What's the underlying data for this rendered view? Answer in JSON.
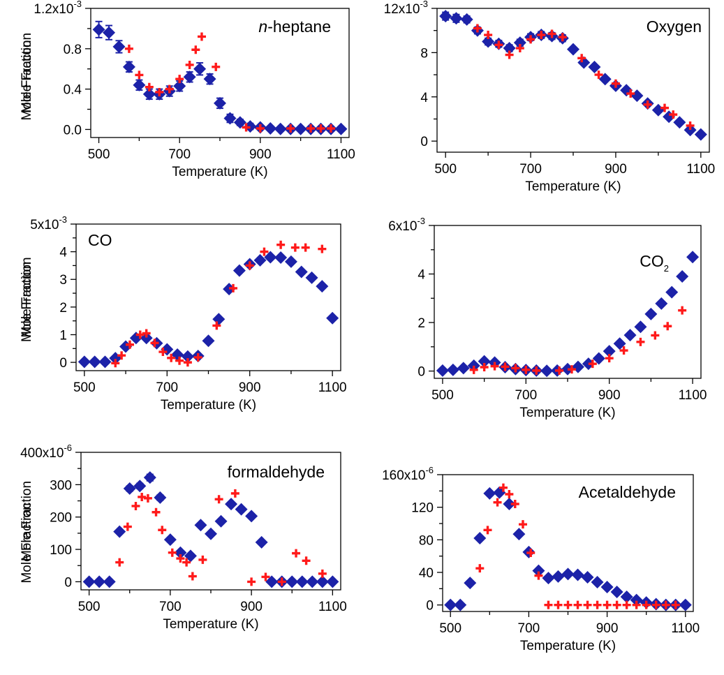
{
  "colors": {
    "model": "#1c22a8",
    "experiment": "#ff1a1a"
  },
  "chart_data": [
    {
      "type": "scatter",
      "label_main": "n",
      "label_rest": "-heptane",
      "label_sub": "",
      "xlabel": "Temperature (K)",
      "ylabel": "Mole Fraction",
      "xlim": [
        480,
        1120
      ],
      "ylim": [
        -0.08,
        1.2
      ],
      "y_exponent": "-3",
      "x_ticks": [
        500,
        700,
        900,
        1100
      ],
      "y_ticks": [
        0.0,
        0.4,
        0.8,
        1.2
      ],
      "y_tick_labels": [
        "0.0",
        "0.4",
        "0.8",
        "1.2x10"
      ],
      "series": [
        {
          "x": [
            500,
            525,
            550,
            575,
            600,
            625,
            650,
            675,
            700,
            725,
            750,
            775,
            800,
            825,
            850,
            875,
            900,
            925,
            950,
            975,
            1000,
            1025,
            1050,
            1075,
            1100
          ],
          "y": [
            0.99,
            0.96,
            0.82,
            0.62,
            0.44,
            0.35,
            0.35,
            0.38,
            0.43,
            0.52,
            0.6,
            0.5,
            0.26,
            0.11,
            0.07,
            0.03,
            0.02,
            0.01,
            0.005,
            0.005,
            0.005,
            0.005,
            0.005,
            0.005,
            0.005
          ],
          "err": [
            0.08,
            0.07,
            0.06,
            0.05,
            0.05,
            0.05,
            0.05,
            0.05,
            0.05,
            0.05,
            0.06,
            0.05,
            0.05,
            0.04,
            0.03,
            0.03,
            0.02,
            0.02,
            0.02,
            0.02,
            0.02,
            0.02,
            0.02,
            0.02,
            0.02
          ]
        },
        {
          "x": [
            575,
            600,
            625,
            650,
            675,
            700,
            725,
            740,
            755,
            790,
            865,
            900,
            975,
            1025,
            1050,
            1075
          ],
          "y": [
            0.8,
            0.54,
            0.42,
            0.37,
            0.4,
            0.5,
            0.64,
            0.79,
            0.92,
            0.62,
            0.02,
            0.01,
            0.01,
            0.01,
            0.01,
            0.01
          ]
        }
      ]
    },
    {
      "type": "scatter",
      "label_main": "Oxygen",
      "label_rest": "",
      "label_sub": "",
      "xlabel": "Temperature (K)",
      "ylabel": "Mole Fraction",
      "xlim": [
        480,
        1120
      ],
      "ylim": [
        -1,
        12
      ],
      "y_exponent": "-3",
      "x_ticks": [
        500,
        700,
        900,
        1100
      ],
      "y_ticks": [
        0,
        4,
        8,
        12
      ],
      "y_tick_labels": [
        "0",
        "4",
        "8",
        "12x10"
      ],
      "series": [
        {
          "x": [
            500,
            525,
            550,
            575,
            600,
            625,
            650,
            675,
            700,
            725,
            750,
            775,
            800,
            825,
            850,
            875,
            900,
            925,
            950,
            975,
            1000,
            1025,
            1050,
            1075,
            1100
          ],
          "y": [
            11.3,
            11.1,
            11.0,
            10.0,
            9.0,
            8.8,
            8.4,
            8.9,
            9.4,
            9.6,
            9.5,
            9.3,
            8.3,
            7.1,
            6.7,
            5.6,
            5.0,
            4.6,
            4.1,
            3.4,
            2.8,
            2.2,
            1.7,
            1.0,
            0.6
          ],
          "err": [
            0.35,
            0.35,
            0.3,
            0.3,
            0.3,
            0.3,
            0.3,
            0.3,
            0.3,
            0.3,
            0.3,
            0.3,
            0,
            0,
            0,
            0,
            0,
            0,
            0,
            0,
            0,
            0,
            0,
            0,
            0
          ]
        },
        {
          "x": [
            575,
            600,
            625,
            650,
            675,
            700,
            725,
            750,
            775,
            820,
            860,
            900,
            935,
            975,
            1015,
            1035,
            1075
          ],
          "y": [
            10.2,
            9.6,
            8.7,
            7.8,
            8.4,
            9.2,
            9.6,
            9.7,
            9.4,
            7.5,
            6.0,
            5.2,
            4.3,
            3.3,
            3.0,
            2.4,
            1.4
          ]
        }
      ]
    },
    {
      "type": "scatter",
      "label_main": "CO",
      "label_rest": "",
      "label_sub": "",
      "xlabel": "Temperature (K)",
      "ylabel": "Mole Fraction",
      "xlim": [
        480,
        1120
      ],
      "ylim": [
        -0.3,
        5
      ],
      "y_exponent": "-3",
      "x_ticks": [
        500,
        700,
        900,
        1100
      ],
      "y_ticks": [
        0,
        1,
        2,
        3,
        4,
        5
      ],
      "y_tick_labels": [
        "0",
        "1",
        "2",
        "3",
        "4",
        "5x10"
      ],
      "series": [
        {
          "x": [
            500,
            525,
            550,
            575,
            600,
            625,
            650,
            675,
            700,
            725,
            750,
            775,
            800,
            825,
            850,
            875,
            900,
            925,
            950,
            975,
            1000,
            1025,
            1050,
            1075,
            1100
          ],
          "y": [
            0.02,
            0.02,
            0.02,
            0.15,
            0.57,
            0.88,
            0.88,
            0.69,
            0.47,
            0.28,
            0.21,
            0.23,
            0.78,
            1.56,
            2.65,
            3.32,
            3.55,
            3.69,
            3.8,
            3.79,
            3.64,
            3.27,
            3.06,
            2.75,
            1.6
          ]
        },
        {
          "x": [
            575,
            590,
            610,
            635,
            650,
            670,
            690,
            710,
            730,
            750,
            775,
            820,
            860,
            900,
            935,
            975,
            1010,
            1035,
            1075
          ],
          "y": [
            -0.03,
            0.25,
            0.64,
            1.0,
            1.05,
            0.7,
            0.38,
            0.16,
            0.06,
            0.0,
            0.18,
            1.33,
            2.68,
            3.5,
            4.0,
            4.25,
            4.15,
            4.15,
            4.1
          ]
        }
      ]
    },
    {
      "type": "scatter",
      "label_main": "CO",
      "label_rest": "",
      "label_sub": "2",
      "xlabel": "Temperature (K)",
      "ylabel": "Mole Fraction",
      "xlim": [
        480,
        1120
      ],
      "ylim": [
        -0.3,
        6
      ],
      "y_exponent": "-3",
      "x_ticks": [
        500,
        700,
        900,
        1100
      ],
      "y_ticks": [
        0,
        2,
        4,
        6
      ],
      "y_tick_labels": [
        "0",
        "2",
        "4",
        "6x10"
      ],
      "series": [
        {
          "x": [
            500,
            525,
            550,
            575,
            600,
            625,
            650,
            675,
            700,
            725,
            750,
            775,
            800,
            825,
            850,
            875,
            900,
            925,
            950,
            975,
            1000,
            1025,
            1050,
            1075,
            1100
          ],
          "y": [
            0.02,
            0.05,
            0.12,
            0.22,
            0.4,
            0.35,
            0.16,
            0.08,
            0.04,
            0.02,
            0.01,
            0.02,
            0.08,
            0.17,
            0.3,
            0.52,
            0.82,
            1.13,
            1.48,
            1.82,
            2.35,
            2.78,
            3.25,
            3.9,
            4.7
          ]
        },
        {
          "x": [
            575,
            600,
            625,
            650,
            675,
            700,
            725,
            780,
            810,
            860,
            900,
            935,
            975,
            1010,
            1040,
            1075
          ],
          "y": [
            0.05,
            0.16,
            0.2,
            0.18,
            0.12,
            0.05,
            0.02,
            0.02,
            0.07,
            0.3,
            0.53,
            0.85,
            1.2,
            1.47,
            1.85,
            2.5
          ]
        }
      ]
    },
    {
      "type": "scatter",
      "label_main": "formaldehyde",
      "label_rest": "",
      "label_sub": "",
      "xlabel": "Temperature (K)",
      "ylabel": "Mole Fraction",
      "xlim": [
        480,
        1120
      ],
      "ylim": [
        -25,
        400
      ],
      "y_exponent": "-6",
      "x_ticks": [
        500,
        700,
        900,
        1100
      ],
      "y_ticks": [
        0,
        100,
        200,
        300,
        400
      ],
      "y_tick_labels": [
        "0",
        "100",
        "200",
        "300",
        "400x10"
      ],
      "series": [
        {
          "x": [
            500,
            525,
            550,
            575,
            600,
            625,
            650,
            675,
            700,
            725,
            750,
            775,
            800,
            825,
            850,
            875,
            900,
            925,
            950,
            975,
            1000,
            1025,
            1050,
            1075,
            1100
          ],
          "y": [
            0,
            0,
            0,
            155,
            288,
            296,
            322,
            260,
            130,
            90,
            80,
            175,
            148,
            187,
            240,
            224,
            203,
            122,
            0,
            0,
            0,
            0,
            0,
            0,
            0
          ],
          "err": [
            0,
            0,
            0,
            6,
            8,
            8,
            10,
            8,
            6,
            5,
            5,
            6,
            6,
            6,
            6,
            6,
            6,
            5,
            0,
            0,
            0,
            0,
            0,
            0,
            0
          ]
        },
        {
          "x": [
            575,
            595,
            615,
            630,
            645,
            665,
            680,
            705,
            725,
            740,
            755,
            780,
            820,
            860,
            900,
            935,
            975,
            1010,
            1035,
            1075
          ],
          "y": [
            60,
            170,
            234,
            262,
            258,
            215,
            160,
            90,
            72,
            60,
            17,
            68,
            255,
            273,
            0,
            15,
            0,
            88,
            65,
            25
          ]
        }
      ]
    },
    {
      "type": "scatter",
      "label_main": "Acetaldehyde",
      "label_rest": "",
      "label_sub": "",
      "xlabel": "Temperature (K)",
      "ylabel": "Mole Fraction",
      "xlim": [
        480,
        1120
      ],
      "ylim": [
        -8,
        160
      ],
      "y_exponent": "-6",
      "x_ticks": [
        500,
        700,
        900,
        1100
      ],
      "y_ticks": [
        0,
        40,
        80,
        120,
        160
      ],
      "y_tick_labels": [
        "0",
        "40",
        "80",
        "120",
        "160x10"
      ],
      "series": [
        {
          "x": [
            500,
            525,
            550,
            575,
            600,
            625,
            650,
            675,
            700,
            725,
            750,
            775,
            800,
            825,
            850,
            875,
            900,
            925,
            950,
            975,
            1000,
            1025,
            1050,
            1075,
            1100
          ],
          "y": [
            0,
            0,
            27,
            82,
            137,
            138,
            124,
            87,
            65,
            42,
            33,
            35,
            38,
            37,
            34,
            28,
            22,
            16,
            10,
            6,
            3,
            1,
            0,
            0,
            0
          ]
        },
        {
          "x": [
            575,
            595,
            620,
            635,
            650,
            665,
            685,
            705,
            725,
            750,
            775,
            800,
            825,
            850,
            875,
            900,
            925,
            950,
            975,
            1000,
            1025,
            1050,
            1075
          ],
          "y": [
            45,
            92,
            126,
            144,
            136,
            124,
            99,
            64,
            36,
            0,
            0,
            0,
            0,
            0,
            0,
            0,
            0,
            0,
            0,
            0,
            0,
            0,
            0
          ]
        }
      ]
    }
  ]
}
